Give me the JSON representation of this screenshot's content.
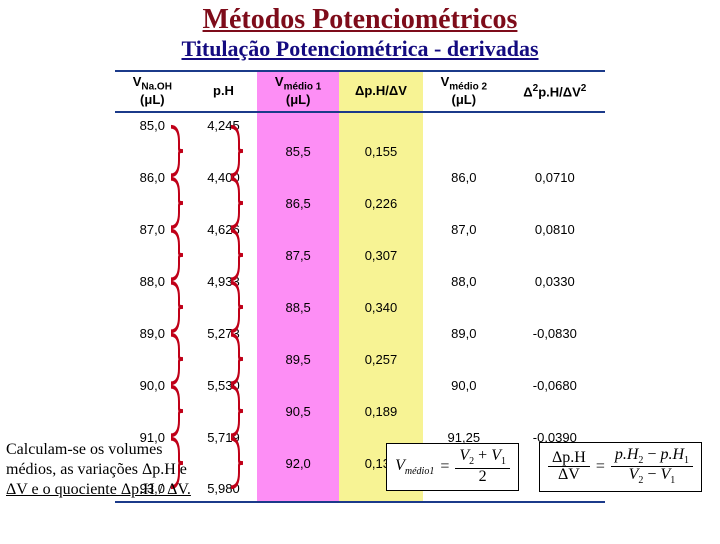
{
  "titles": {
    "main": "Métodos Potenciométricos",
    "sub": "Titulação Potenciométrica - derivadas"
  },
  "table": {
    "headers": {
      "v1_l1": "V",
      "v1_sub": "Na.OH",
      "unit": "(μL)",
      "ph": "p.H",
      "vm1_l1": "V",
      "vm1_sub": "médio 1",
      "dph": "Δp.H/ΔV",
      "vm2_l1": "V",
      "vm2_sub": "médio 2",
      "d2_l1": "Δ",
      "d2_sup": "2",
      "d2_rest": "p.H/ΔV",
      "d2_sup2": "2"
    },
    "col_bg": {
      "vm1": "#fd8ef5",
      "dph": "#f7f394"
    },
    "rows": [
      {
        "v1": "85,0",
        "ph": "4,245",
        "vm1": "",
        "dph": "",
        "vm2": "",
        "d2": ""
      },
      {
        "v1": "",
        "ph": "",
        "vm1": "85,5",
        "dph": "0,155",
        "vm2": "",
        "d2": ""
      },
      {
        "v1": "86,0",
        "ph": "4,400",
        "vm1": "",
        "dph": "",
        "vm2": "86,0",
        "d2": "0,0710"
      },
      {
        "v1": "",
        "ph": "",
        "vm1": "86,5",
        "dph": "0,226",
        "vm2": "",
        "d2": ""
      },
      {
        "v1": "87,0",
        "ph": "4,626",
        "vm1": "",
        "dph": "",
        "vm2": "87,0",
        "d2": "0,0810"
      },
      {
        "v1": "",
        "ph": "",
        "vm1": "87,5",
        "dph": "0,307",
        "vm2": "",
        "d2": ""
      },
      {
        "v1": "88,0",
        "ph": "4,933",
        "vm1": "",
        "dph": "",
        "vm2": "88,0",
        "d2": "0,0330"
      },
      {
        "v1": "",
        "ph": "",
        "vm1": "88,5",
        "dph": "0,340",
        "vm2": "",
        "d2": ""
      },
      {
        "v1": "89,0",
        "ph": "5,273",
        "vm1": "",
        "dph": "",
        "vm2": "89,0",
        "d2": "-0,0830"
      },
      {
        "v1": "",
        "ph": "",
        "vm1": "89,5",
        "dph": "0,257",
        "vm2": "",
        "d2": ""
      },
      {
        "v1": "90,0",
        "ph": "5,530",
        "vm1": "",
        "dph": "",
        "vm2": "90,0",
        "d2": "-0,0680"
      },
      {
        "v1": "",
        "ph": "",
        "vm1": "90,5",
        "dph": "0,189",
        "vm2": "",
        "d2": ""
      },
      {
        "v1": "91,0",
        "ph": "5,719",
        "vm1": "",
        "dph": "",
        "vm2": "91,25",
        "d2": "-0,0390"
      },
      {
        "v1": "",
        "ph": "",
        "vm1": "92,0",
        "dph": "0,130",
        "vm2": "",
        "d2": ""
      },
      {
        "v1": "93,0",
        "ph": "5,980",
        "vm1": "",
        "dph": "",
        "vm2": "",
        "d2": ""
      }
    ],
    "brace_color": "#c00018"
  },
  "explain": {
    "l1": "Calculam-se os volumes",
    "l2": "médios, as variações Δp.H e",
    "l3": "ΔV e o quociente Δp.H / ΔV."
  },
  "formulas": {
    "f1_lhs": "V",
    "f1_lhs_sub": "médio1",
    "f1_num_a": "V",
    "f1_num_a_sub": "2",
    "f1_plus": " + ",
    "f1_num_b": "V",
    "f1_num_b_sub": "1",
    "f1_den": "2",
    "f2_lhs_num": "Δp.H",
    "f2_lhs_den": "ΔV",
    "f2_rhs_num_a": "p.H",
    "f2_rhs_num_a_sub": "2",
    "f2_minus": " − ",
    "f2_rhs_num_b": "p.H",
    "f2_rhs_num_b_sub": "1",
    "f2_rhs_den_a": "V",
    "f2_rhs_den_a_sub": "2",
    "f2_rhs_den_b": "V",
    "f2_rhs_den_b_sub": "1",
    "eq": " = "
  },
  "style": {
    "title_color": "#7e0c1a",
    "subtitle_color": "#140b80",
    "border_color": "#1b3a8a"
  }
}
